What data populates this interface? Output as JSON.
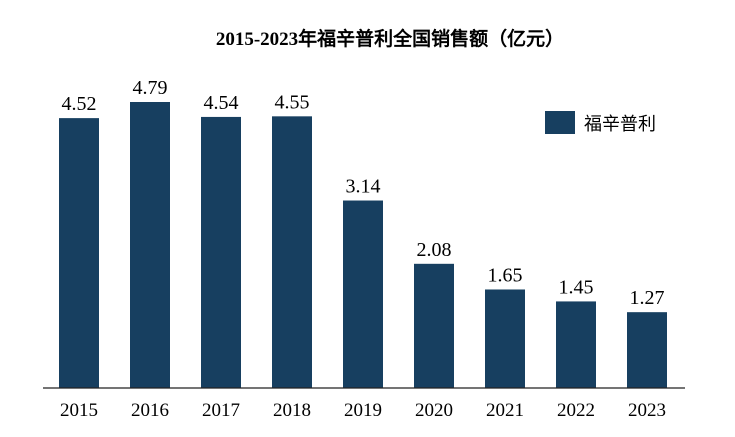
{
  "chart_data": {
    "type": "bar",
    "title": "2015-2023年福辛普利全国销售额（亿元）",
    "categories": [
      "2015",
      "2016",
      "2017",
      "2018",
      "2019",
      "2020",
      "2021",
      "2022",
      "2023"
    ],
    "series": [
      {
        "name": "福辛普利",
        "values": [
          4.52,
          4.79,
          4.54,
          4.55,
          3.14,
          2.08,
          1.65,
          1.45,
          1.27
        ],
        "color": "#173f60"
      }
    ],
    "data_labels": [
      "4.52",
      "4.79",
      "4.54",
      "4.55",
      "3.14",
      "2.08",
      "1.65",
      "1.45",
      "1.27"
    ],
    "ylim": [
      0,
      4.79
    ],
    "grid": false,
    "legend_position": "top-right",
    "xlabel": "",
    "ylabel": ""
  }
}
